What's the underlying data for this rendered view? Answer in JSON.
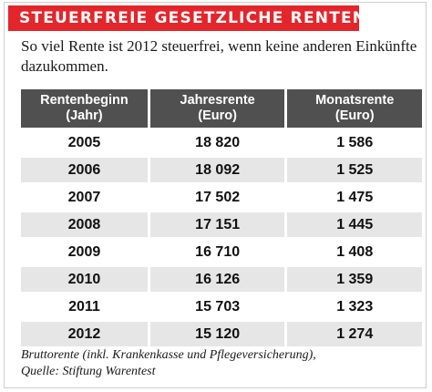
{
  "title": "STEUERFREIE GESETZLICHE RENTEN",
  "subtitle": "So viel Rente ist 2012 steuerfrei, wenn keine anderen Einkünfte dazukommen.",
  "accent_color": "#e3262b",
  "header_color": "#505050",
  "table": {
    "columns": [
      {
        "line1": "Rentenbeginn",
        "line2": "(Jahr)"
      },
      {
        "line1": "Jahresrente",
        "line2": "(Euro)"
      },
      {
        "line1": "Monatsrente",
        "line2": "(Euro)"
      }
    ],
    "rows": [
      [
        "2005",
        "18 820",
        "1 586"
      ],
      [
        "2006",
        "18 092",
        "1 525"
      ],
      [
        "2007",
        "17 502",
        "1 475"
      ],
      [
        "2008",
        "17 151",
        "1 445"
      ],
      [
        "2009",
        "16 710",
        "1 408"
      ],
      [
        "2010",
        "16 126",
        "1 359"
      ],
      [
        "2011",
        "15 703",
        "1 323"
      ],
      [
        "2012",
        "15 120",
        "1 274"
      ]
    ]
  },
  "footnote_line1": "Bruttorente (inkl. Krankenkasse und Pflegeversicherung),",
  "footnote_line2": "Quelle: Stiftung Warentest"
}
